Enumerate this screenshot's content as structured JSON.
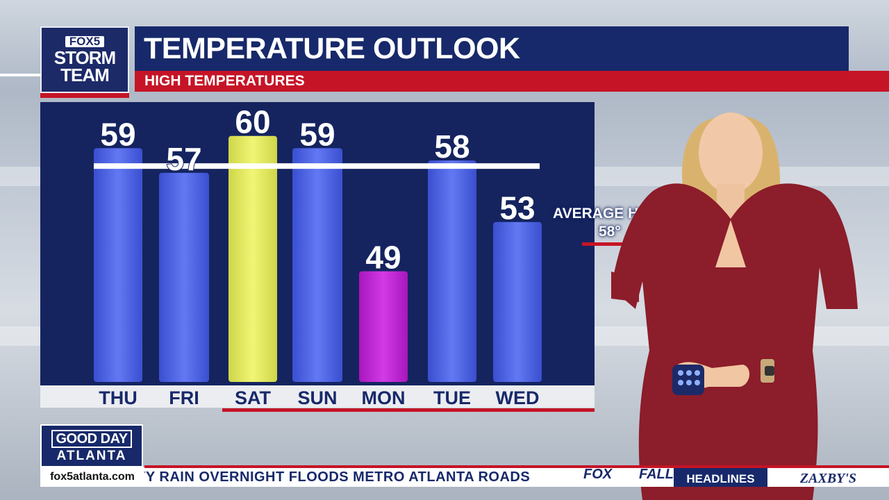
{
  "logo": {
    "line1": "FOX5",
    "line2": "STORM",
    "line3": "TEAM"
  },
  "header": {
    "title": "TEMPERATURE OUTLOOK",
    "subtitle": "HIGH TEMPERATURES"
  },
  "average": {
    "label": "AVERAGE H",
    "value": "58°"
  },
  "show": {
    "line1": "GOOD DAY",
    "line2": "ATLANTA",
    "url": "fox5atlanta.com"
  },
  "ticker": {
    "text": "VY RAIN OVERNIGHT FLOODS METRO ATLANTA ROADS",
    "network": "FOX",
    "trailing": "FALL",
    "headlines": "HEADLINES",
    "sponsor": "ZAXBY'S"
  },
  "colors": {
    "normal": "#4d63e6",
    "highest": "#e4ec5e",
    "lowest": "#c021d6",
    "line": "#ffffff"
  },
  "chart_data": {
    "type": "bar",
    "title": "TEMPERATURE OUTLOOK",
    "subtitle": "HIGH TEMPERATURES",
    "categories": [
      "THU",
      "FRI",
      "SAT",
      "SUN",
      "MON",
      "TUE",
      "WED"
    ],
    "values": [
      59,
      57,
      60,
      59,
      49,
      58,
      53
    ],
    "value_labels": [
      "59",
      "57",
      "60",
      "59",
      "49",
      "58",
      "53"
    ],
    "bar_colors": [
      "#4d63e6",
      "#4d63e6",
      "#e4ec5e",
      "#4d63e6",
      "#c021d6",
      "#4d63e6",
      "#4d63e6"
    ],
    "reference_line": {
      "value": 58,
      "label": "AVERAGE H",
      "value_label": "58°"
    },
    "ylim": [
      40,
      61
    ],
    "grid": false,
    "legend": "none"
  }
}
